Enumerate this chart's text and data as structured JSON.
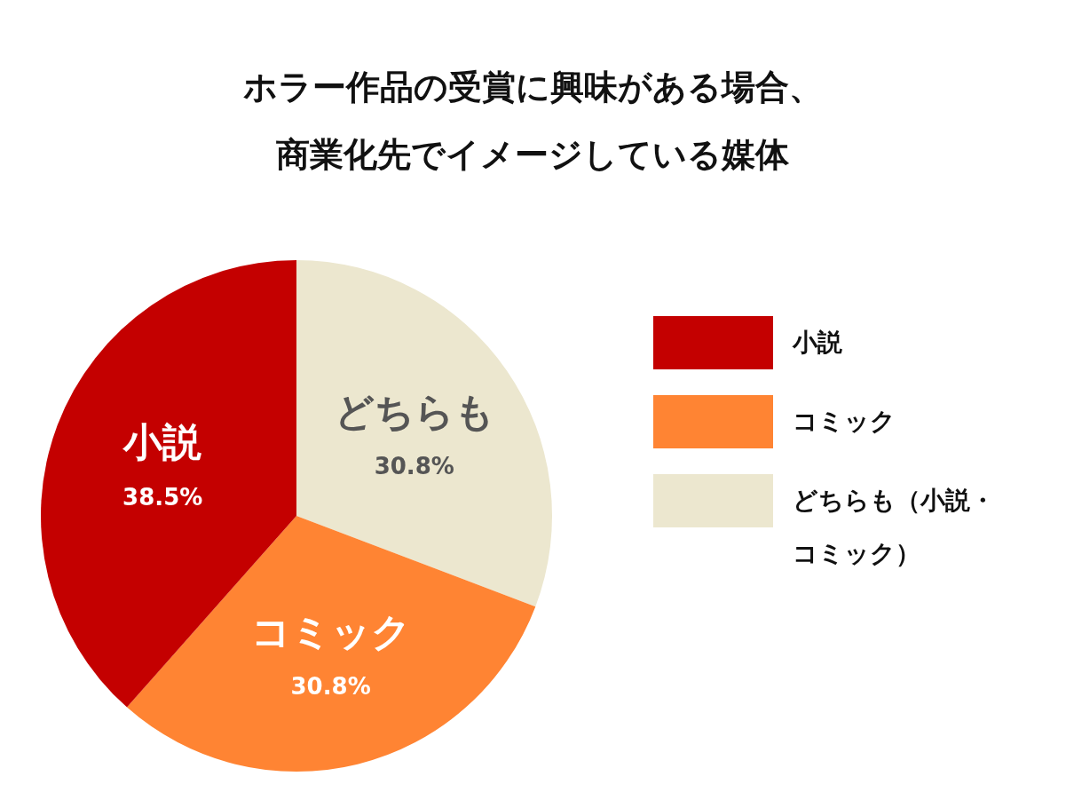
{
  "chart_data": {
    "type": "pie",
    "title": "ホラー作品の受賞に興味がある場合、商業化先でイメージしている媒体",
    "categories": [
      "小説",
      "コミック",
      "どちらも（小説・コミック）"
    ],
    "values": [
      38.5,
      30.8,
      30.8
    ],
    "colors": [
      "#c40000",
      "#ff8433",
      "#ece7cf"
    ],
    "value_labels": [
      "38.5%",
      "30.8%",
      "30.8%"
    ],
    "annotations": [
      "小説",
      "コミック",
      "どちらも"
    ],
    "legend": "right"
  }
}
